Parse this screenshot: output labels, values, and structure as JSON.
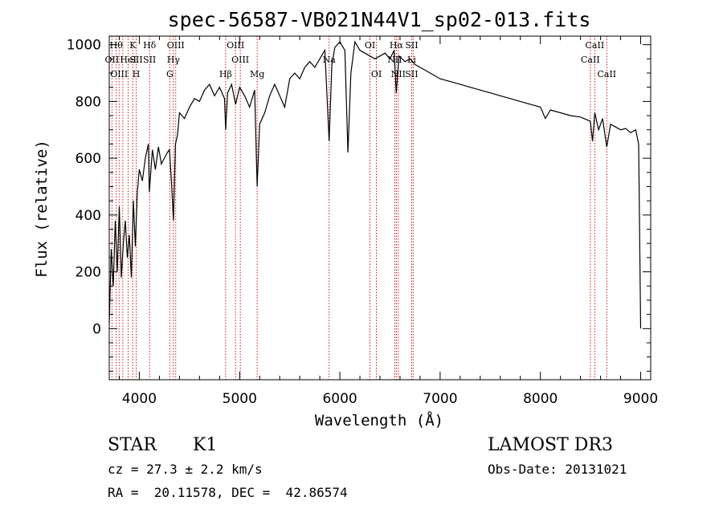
{
  "chart_data": {
    "type": "line",
    "title": "spec-56587-VB021N44V1_sp02-013.fits",
    "xlabel": "Wavelength (Å)",
    "ylabel": "Flux (relative)",
    "xlim": [
      3700,
      9100
    ],
    "ylim": [
      -180,
      1030
    ],
    "xticks": [
      4000,
      5000,
      6000,
      7000,
      8000,
      9000
    ],
    "yticks": [
      0,
      200,
      400,
      600,
      800,
      1000
    ],
    "x_minor_step": 200,
    "y_minor_step": 50,
    "series": [
      {
        "name": "flux",
        "x": [
          3700,
          3720,
          3740,
          3760,
          3780,
          3800,
          3820,
          3840,
          3860,
          3880,
          3900,
          3920,
          3940,
          3960,
          3980,
          4000,
          4030,
          4060,
          4090,
          4100,
          4130,
          4160,
          4190,
          4220,
          4250,
          4280,
          4300,
          4320,
          4340,
          4360,
          4380,
          4400,
          4450,
          4500,
          4550,
          4600,
          4650,
          4700,
          4750,
          4800,
          4850,
          4861,
          4880,
          4920,
          4960,
          5000,
          5050,
          5100,
          5150,
          5175,
          5200,
          5250,
          5300,
          5350,
          5400,
          5450,
          5500,
          5550,
          5600,
          5650,
          5700,
          5750,
          5800,
          5850,
          5893,
          5920,
          5950,
          6000,
          6050,
          6080,
          6110,
          6150,
          6200,
          6250,
          6300,
          6350,
          6400,
          6450,
          6500,
          6540,
          6563,
          6590,
          6620,
          6650,
          6700,
          6750,
          6800,
          6850,
          6900,
          6950,
          7000,
          7100,
          7200,
          7300,
          7400,
          7500,
          7600,
          7700,
          7800,
          7900,
          8000,
          8050,
          8100,
          8200,
          8300,
          8400,
          8498,
          8520,
          8542,
          8580,
          8620,
          8662,
          8700,
          8750,
          8800,
          8850,
          8900,
          8950,
          8980,
          9000
        ],
        "values": [
          20,
          280,
          150,
          380,
          200,
          430,
          180,
          300,
          380,
          250,
          330,
          180,
          450,
          290,
          480,
          560,
          520,
          600,
          650,
          480,
          630,
          560,
          640,
          580,
          600,
          620,
          630,
          520,
          380,
          650,
          680,
          760,
          740,
          780,
          810,
          800,
          840,
          860,
          820,
          850,
          810,
          700,
          830,
          860,
          790,
          850,
          820,
          780,
          840,
          500,
          720,
          760,
          820,
          860,
          820,
          780,
          880,
          900,
          880,
          920,
          940,
          920,
          950,
          980,
          660,
          930,
          990,
          1010,
          980,
          620,
          900,
          1010,
          980,
          970,
          960,
          950,
          960,
          970,
          950,
          980,
          830,
          960,
          950,
          940,
          950,
          930,
          920,
          910,
          900,
          890,
          880,
          870,
          860,
          850,
          840,
          830,
          820,
          810,
          800,
          790,
          780,
          740,
          770,
          760,
          750,
          745,
          730,
          660,
          760,
          700,
          740,
          640,
          720,
          710,
          700,
          705,
          690,
          700,
          650,
          0
        ]
      }
    ],
    "lines": [
      {
        "x": 3727,
        "labels": [
          "OII"
        ],
        "rows": [
          1
        ]
      },
      {
        "x": 3770,
        "labels": [
          "Hθ"
        ],
        "rows": [
          0
        ]
      },
      {
        "x": 3798,
        "labels": [
          "OIII"
        ],
        "rows": [
          2
        ]
      },
      {
        "x": 3835,
        "labels": [],
        "rows": []
      },
      {
        "x": 3889,
        "labels": [
          "HeI"
        ],
        "rows": [
          1
        ]
      },
      {
        "x": 3934,
        "labels": [
          "K"
        ],
        "rows": [
          0
        ]
      },
      {
        "x": 3969,
        "labels": [
          "H",
          "SII"
        ],
        "rows": [
          2,
          1
        ]
      },
      {
        "x": 4102,
        "labels": [
          "Hδ",
          "SII"
        ],
        "rows": [
          0,
          1
        ]
      },
      {
        "x": 4304,
        "labels": [
          "G"
        ],
        "rows": [
          2
        ]
      },
      {
        "x": 4340,
        "labels": [
          "Hγ"
        ],
        "rows": [
          1
        ]
      },
      {
        "x": 4363,
        "labels": [
          "OIII"
        ],
        "rows": [
          0
        ]
      },
      {
        "x": 4861,
        "labels": [
          "Hβ"
        ],
        "rows": [
          2
        ]
      },
      {
        "x": 4959,
        "labels": [
          "OIII"
        ],
        "rows": [
          0
        ]
      },
      {
        "x": 5007,
        "labels": [
          "OIII"
        ],
        "rows": [
          1
        ]
      },
      {
        "x": 5175,
        "labels": [
          "Mg"
        ],
        "rows": [
          2
        ]
      },
      {
        "x": 5893,
        "labels": [
          "Na"
        ],
        "rows": [
          1
        ]
      },
      {
        "x": 6300,
        "labels": [
          "OI"
        ],
        "rows": [
          0
        ]
      },
      {
        "x": 6364,
        "labels": [
          "OI"
        ],
        "rows": [
          2
        ]
      },
      {
        "x": 6548,
        "labels": [
          "NII"
        ],
        "rows": [
          1
        ]
      },
      {
        "x": 6563,
        "labels": [
          "Hα"
        ],
        "rows": [
          0
        ]
      },
      {
        "x": 6583,
        "labels": [
          "NII"
        ],
        "rows": [
          2
        ]
      },
      {
        "x": 6716,
        "labels": [
          "SII",
          "Li",
          "SII"
        ],
        "rows": [
          0,
          1,
          2
        ]
      },
      {
        "x": 6731,
        "labels": [],
        "rows": []
      },
      {
        "x": 8498,
        "labels": [
          "CaII"
        ],
        "rows": [
          1
        ]
      },
      {
        "x": 8542,
        "labels": [
          "CaII"
        ],
        "rows": [
          0
        ]
      },
      {
        "x": 8662,
        "labels": [
          "CaII"
        ],
        "rows": [
          2
        ]
      }
    ]
  },
  "info": {
    "object_class": "STAR",
    "subclass": "K1",
    "survey": "LAMOST DR3",
    "cz_text": "cz = 27.3 ± 2.2 km/s",
    "obs_date_text": "Obs-Date: 20131021",
    "radec_text": "RA =  20.11578, DEC =  42.86574"
  },
  "colors": {
    "axis": "#000000",
    "spectrum": "#000000",
    "line_marker": "#cc0000",
    "background": "#ffffff"
  }
}
